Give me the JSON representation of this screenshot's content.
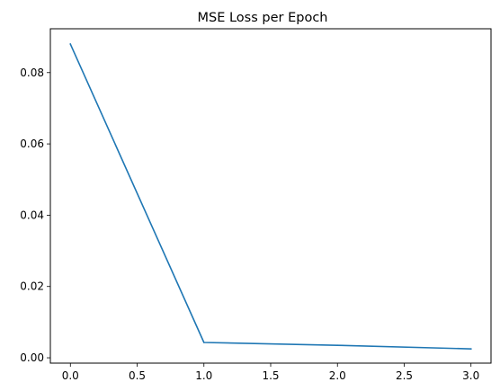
{
  "chart_data": {
    "type": "line",
    "title": "MSE Loss per Epoch",
    "xlabel": "",
    "ylabel": "",
    "x": [
      0,
      1,
      2,
      3
    ],
    "series": [
      {
        "values": [
          0.088,
          0.0043,
          0.0035,
          0.0025
        ],
        "color": "#1f77b4"
      }
    ],
    "xlim": [
      -0.15,
      3.15
    ],
    "ylim": [
      -0.0015,
      0.0923
    ],
    "xticks": [
      0.0,
      0.5,
      1.0,
      1.5,
      2.0,
      2.5,
      3.0
    ],
    "xtick_labels": [
      "0.0",
      "0.5",
      "1.0",
      "1.5",
      "2.0",
      "2.5",
      "3.0"
    ],
    "yticks": [
      0.0,
      0.02,
      0.04,
      0.06,
      0.08
    ],
    "ytick_labels": [
      "0.00",
      "0.02",
      "0.04",
      "0.06",
      "0.08"
    ],
    "grid": false,
    "legend": "none"
  }
}
